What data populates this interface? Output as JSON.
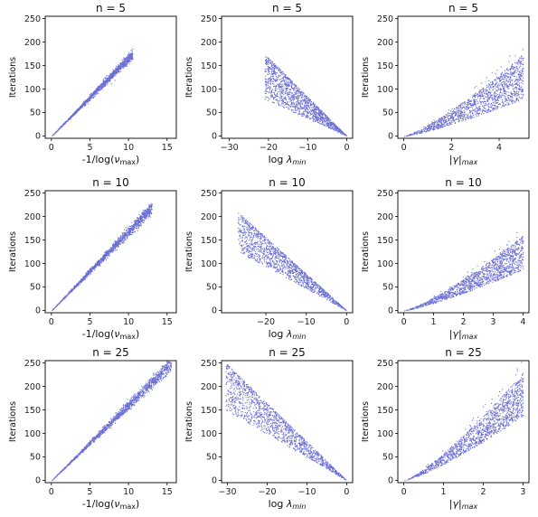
{
  "point_color": "#6b6fd4",
  "chart_data": [
    {
      "type": "scatter",
      "title": "n = 5",
      "xlabel_parts": [
        {
          "t": "-1/log("
        },
        {
          "t": "ν",
          "i": true
        },
        {
          "t": "max",
          "sub": true
        },
        {
          "t": ")"
        }
      ],
      "ylabel": "Iterations",
      "xlim": [
        -0.8,
        16.2
      ],
      "ylim": [
        -5,
        255
      ],
      "xticks": [
        0,
        5,
        10,
        15
      ],
      "yticks": [
        0,
        50,
        100,
        150,
        200,
        250
      ],
      "shape": "linear",
      "x_range": [
        0,
        10.5
      ],
      "y_at_xmax": 175,
      "spread": 0.1
    },
    {
      "type": "scatter",
      "title": "n = 5",
      "xlabel_parts": [
        {
          "t": "log "
        },
        {
          "t": "λ",
          "i": true
        },
        {
          "t": "min",
          "sub": true,
          "i": true
        }
      ],
      "ylabel": "Iterations",
      "xlim": [
        -32,
        1.5
      ],
      "ylim": [
        -5,
        255
      ],
      "xticks": [
        -30,
        -20,
        -10,
        0
      ],
      "yticks": [
        0,
        50,
        100,
        150,
        200,
        250
      ],
      "shape": "neglinear",
      "x_range": [
        -21,
        0
      ],
      "y_at_xmin": 175,
      "spread": 0.55
    },
    {
      "type": "scatter",
      "title": "n = 5",
      "xlabel_parts": [
        {
          "t": "|"
        },
        {
          "t": "γ",
          "i": true
        },
        {
          "t": "|"
        },
        {
          "t": "max",
          "sub": true,
          "i": true
        }
      ],
      "ylabel": "Iterations",
      "xlim": [
        -0.25,
        5.25
      ],
      "ylim": [
        -5,
        255
      ],
      "xticks": [
        0,
        2,
        4
      ],
      "yticks": [
        0,
        50,
        100,
        150,
        200,
        250
      ],
      "shape": "fan",
      "x_range": [
        0,
        5
      ],
      "y_at_xmax": 175,
      "spread": 0.55
    },
    {
      "type": "scatter",
      "title": "n = 10",
      "xlabel_parts": [
        {
          "t": "-1/log("
        },
        {
          "t": "ν",
          "i": true
        },
        {
          "t": "max",
          "sub": true
        },
        {
          "t": ")"
        }
      ],
      "ylabel": "Iterations",
      "xlim": [
        -0.8,
        16.2
      ],
      "ylim": [
        -5,
        255
      ],
      "xticks": [
        0,
        5,
        10,
        15
      ],
      "yticks": [
        0,
        50,
        100,
        150,
        200,
        250
      ],
      "shape": "linear",
      "x_range": [
        0,
        13
      ],
      "y_at_xmax": 220,
      "spread": 0.1
    },
    {
      "type": "scatter",
      "title": "n = 10",
      "xlabel_parts": [
        {
          "t": "log "
        },
        {
          "t": "λ",
          "i": true
        },
        {
          "t": "min",
          "sub": true,
          "i": true
        }
      ],
      "ylabel": "Iterations",
      "xlim": [
        -31,
        1.5
      ],
      "ylim": [
        -5,
        255
      ],
      "xticks": [
        -20,
        -10,
        0
      ],
      "yticks": [
        0,
        50,
        100,
        150,
        200,
        250
      ],
      "shape": "neglinear",
      "x_range": [
        -27,
        0
      ],
      "y_at_xmin": 210,
      "spread": 0.4
    },
    {
      "type": "scatter",
      "title": "n = 10",
      "xlabel_parts": [
        {
          "t": "|"
        },
        {
          "t": "γ",
          "i": true
        },
        {
          "t": "|"
        },
        {
          "t": "max",
          "sub": true,
          "i": true
        }
      ],
      "ylabel": "Iterations",
      "xlim": [
        -0.2,
        4.2
      ],
      "ylim": [
        -5,
        255
      ],
      "xticks": [
        0,
        1,
        2,
        3,
        4
      ],
      "yticks": [
        0,
        50,
        100,
        150,
        200,
        250
      ],
      "shape": "fan",
      "x_range": [
        0,
        4
      ],
      "y_at_xmax": 160,
      "spread": 0.45
    },
    {
      "type": "scatter",
      "title": "n = 25",
      "xlabel_parts": [
        {
          "t": "-1/log("
        },
        {
          "t": "ν",
          "i": true
        },
        {
          "t": "max",
          "sub": true
        },
        {
          "t": ")"
        }
      ],
      "ylabel": "Iterations",
      "xlim": [
        -0.8,
        16.2
      ],
      "ylim": [
        -5,
        255
      ],
      "xticks": [
        0,
        5,
        10,
        15
      ],
      "yticks": [
        0,
        50,
        100,
        150,
        200,
        250
      ],
      "shape": "linear",
      "x_range": [
        0,
        15.5
      ],
      "y_at_xmax": 250,
      "spread": 0.1
    },
    {
      "type": "scatter",
      "title": "n = 25",
      "xlabel_parts": [
        {
          "t": "log "
        },
        {
          "t": "λ",
          "i": true
        },
        {
          "t": "min",
          "sub": true,
          "i": true
        }
      ],
      "ylabel": "Iterations",
      "xlim": [
        -31.5,
        1.5
      ],
      "ylim": [
        -5,
        255
      ],
      "xticks": [
        -30,
        -20,
        -10,
        0
      ],
      "yticks": [
        0,
        50,
        100,
        150,
        200,
        250
      ],
      "shape": "neglinear",
      "x_range": [
        -30.5,
        0
      ],
      "y_at_xmin": 250,
      "spread": 0.4
    },
    {
      "type": "scatter",
      "title": "n = 25",
      "xlabel_parts": [
        {
          "t": "|"
        },
        {
          "t": "γ",
          "i": true
        },
        {
          "t": "|"
        },
        {
          "t": "max",
          "sub": true,
          "i": true
        }
      ],
      "ylabel": "Iterations",
      "xlim": [
        -0.15,
        3.15
      ],
      "ylim": [
        -5,
        255
      ],
      "xticks": [
        0,
        1,
        2,
        3
      ],
      "yticks": [
        0,
        50,
        100,
        150,
        200,
        250
      ],
      "shape": "fan",
      "x_range": [
        0,
        3
      ],
      "y_at_xmax": 230,
      "spread": 0.4
    }
  ]
}
